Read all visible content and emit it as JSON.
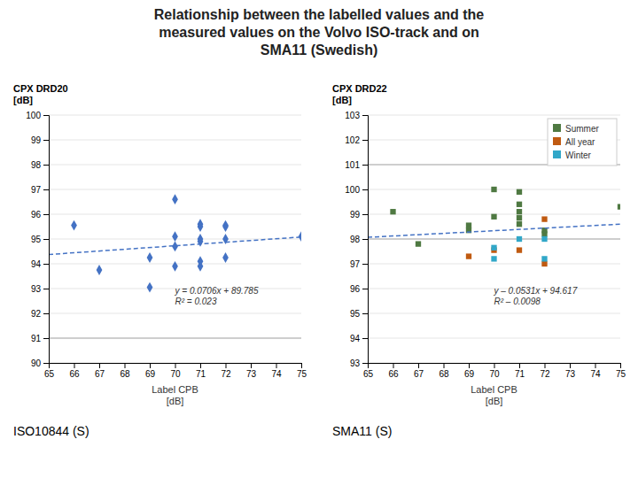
{
  "title": "Relationship between the labelled values and the\nmeasured values on the Volvo ISO-track and on\nSMA11 (Swedish)",
  "chart_data": [
    {
      "type": "scatter",
      "subtitle": "ISO10844 (S)",
      "xlabel": "Label CPB\n[dB]",
      "ylabel": "CPX DRD20\n[dB]",
      "annotations": [
        "y = 0.0706x + 89.785\nR² = 0.023"
      ],
      "xlim": [
        65,
        75
      ],
      "ylim": [
        90,
        100
      ],
      "xticks": [
        65,
        66,
        67,
        68,
        69,
        70,
        71,
        72,
        73,
        74,
        75
      ],
      "yticks": [
        90,
        91,
        92,
        93,
        94,
        95,
        96,
        97,
        98,
        99,
        100
      ],
      "grid": true,
      "hlines": [
        {
          "y": 91,
          "color": "#aaaaaa"
        }
      ],
      "series": [
        {
          "type": "scatter",
          "color": "#4472C4",
          "marker": "diamond",
          "x": [
            66,
            67,
            69,
            69,
            70,
            70,
            70,
            70,
            71,
            71,
            71,
            71,
            71,
            71,
            72,
            72,
            72,
            72,
            75
          ],
          "values": [
            95.55,
            93.75,
            94.25,
            93.05,
            96.6,
            95.1,
            94.7,
            93.9,
            95.6,
            95.5,
            95.0,
            94.9,
            94.1,
            93.9,
            95.55,
            95.5,
            95.0,
            94.25,
            95.1
          ]
        },
        {
          "type": "line",
          "color": "#4472C4",
          "line_style": "dashed",
          "x": [
            65,
            75
          ],
          "values": [
            94.374,
            95.08
          ]
        }
      ]
    },
    {
      "type": "scatter",
      "subtitle": "SMA11 (S)",
      "xlabel": "Label CPB\n[dB]",
      "ylabel": "CPX DRD22\n[dB]",
      "annotations": [
        "y – 0.0531x + 94.617\nR² – 0.0098"
      ],
      "xlim": [
        65,
        75
      ],
      "ylim": [
        93,
        103
      ],
      "xticks": [
        65,
        66,
        67,
        68,
        69,
        70,
        71,
        72,
        73,
        74,
        75
      ],
      "yticks": [
        93,
        94,
        95,
        96,
        97,
        98,
        99,
        100,
        101,
        102,
        103
      ],
      "grid": true,
      "legend": "upper right",
      "hlines": [
        {
          "y": 98,
          "color": "#aaaaaa"
        },
        {
          "y": 101,
          "color": "#aaaaaa"
        }
      ],
      "series": [
        {
          "name": "Summer",
          "type": "scatter",
          "color": "#4F7942",
          "marker": "square",
          "x": [
            66,
            67,
            69,
            69,
            70,
            70,
            71,
            71,
            71,
            71,
            71,
            72,
            72,
            75
          ],
          "values": [
            99.1,
            97.8,
            98.35,
            98.55,
            100.0,
            98.9,
            99.9,
            99.4,
            99.1,
            98.85,
            98.6,
            98.2,
            98.35,
            99.3
          ]
        },
        {
          "name": "All year",
          "type": "scatter",
          "color": "#C05A11",
          "marker": "square",
          "x": [
            69,
            70,
            71,
            72,
            72
          ],
          "values": [
            97.3,
            97.55,
            97.55,
            98.8,
            97.0
          ]
        },
        {
          "name": "Winter",
          "type": "scatter",
          "color": "#31A7C8",
          "marker": "square",
          "x": [
            70,
            70,
            71,
            72,
            72
          ],
          "values": [
            97.65,
            97.2,
            98.0,
            98.0,
            97.2
          ]
        },
        {
          "type": "line",
          "color": "#4472C4",
          "line_style": "dashed",
          "x": [
            65,
            75
          ],
          "values": [
            98.0685,
            98.5995
          ]
        }
      ]
    }
  ]
}
